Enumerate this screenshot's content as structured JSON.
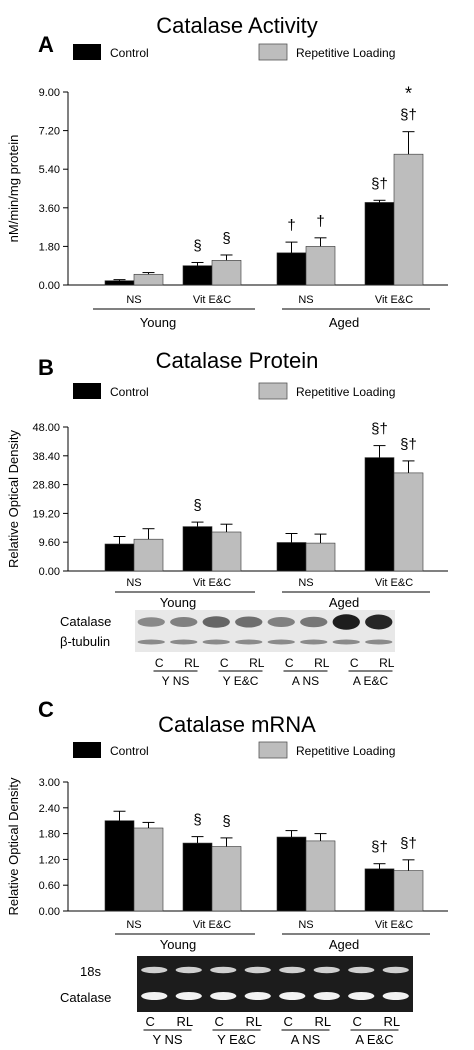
{
  "colors": {
    "control": "#000000",
    "repetitive_loading": "#bdbdbd",
    "axis": "#000000",
    "gel_bg": "#1c1c1c"
  },
  "chart_data": [
    {
      "panel": "A",
      "type": "bar",
      "title": "Catalase Activity",
      "ylabel": "nM/min/mg protein",
      "xlabel": "",
      "ylim": [
        0,
        9
      ],
      "yticks": [
        "0.00",
        "1.80",
        "3.60",
        "5.40",
        "7.20",
        "9.00"
      ],
      "categories": [
        "NS",
        "Vit E&C",
        "NS",
        "Vit E&C"
      ],
      "groups": [
        "Young",
        "Aged"
      ],
      "series": [
        {
          "name": "Control",
          "values": [
            0.2,
            0.9,
            1.5,
            3.85
          ],
          "errors": [
            0.05,
            0.15,
            0.5,
            0.1
          ]
        },
        {
          "name": "Repetitive Loading",
          "values": [
            0.5,
            1.15,
            1.8,
            6.1
          ],
          "errors": [
            0.08,
            0.25,
            0.4,
            1.05
          ]
        }
      ],
      "annotations": [
        {
          "category": 1,
          "series": 0,
          "text": "§"
        },
        {
          "category": 1,
          "series": 1,
          "text": "§"
        },
        {
          "category": 2,
          "series": 0,
          "text": "†"
        },
        {
          "category": 2,
          "series": 1,
          "text": "†"
        },
        {
          "category": 3,
          "series": 0,
          "text": "§†"
        },
        {
          "category": 3,
          "series": 1,
          "text": "§†"
        },
        {
          "category": 3,
          "series": 1,
          "text": "*",
          "line": 2
        }
      ],
      "legend": "top"
    },
    {
      "panel": "B",
      "type": "bar",
      "title": "Catalase Protein",
      "ylabel": "Relative Optical Density",
      "xlabel": "",
      "ylim": [
        0,
        48
      ],
      "yticks": [
        "0.00",
        "9.60",
        "19.20",
        "28.80",
        "38.40",
        "48.00"
      ],
      "categories": [
        "NS",
        "Vit E&C",
        "NS",
        "Vit E&C"
      ],
      "groups": [
        "Young",
        "Aged"
      ],
      "series": [
        {
          "name": "Control",
          "values": [
            9.0,
            14.8,
            9.5,
            37.8
          ],
          "errors": [
            2.5,
            1.5,
            3.0,
            4.0
          ]
        },
        {
          "name": "Repetitive Loading",
          "values": [
            10.6,
            13.0,
            9.3,
            32.7
          ],
          "errors": [
            3.5,
            2.6,
            3.0,
            4.0
          ]
        }
      ],
      "annotations": [
        {
          "category": 1,
          "series": 0,
          "text": "§"
        },
        {
          "category": 3,
          "series": 0,
          "text": "§†"
        },
        {
          "category": 3,
          "series": 1,
          "text": "§†"
        }
      ],
      "legend": "top",
      "blot": {
        "rows": [
          "Catalase",
          "β-tubulin"
        ],
        "lane_labels": [
          "C",
          "RL",
          "C",
          "RL",
          "C",
          "RL",
          "C",
          "RL"
        ],
        "group_labels": [
          "Y NS",
          "Y E&C",
          "A NS",
          "A E&C"
        ]
      }
    },
    {
      "panel": "C",
      "type": "bar",
      "title": "Catalase mRNA",
      "ylabel": "Relative Optical Density",
      "xlabel": "",
      "ylim": [
        0,
        3
      ],
      "yticks": [
        "0.00",
        "0.60",
        "1.20",
        "1.80",
        "2.40",
        "3.00"
      ],
      "categories": [
        "NS",
        "Vit E&C",
        "NS",
        "Vit E&C"
      ],
      "groups": [
        "Young",
        "Aged"
      ],
      "series": [
        {
          "name": "Control",
          "values": [
            2.1,
            1.58,
            1.72,
            0.98
          ],
          "errors": [
            0.22,
            0.15,
            0.15,
            0.12
          ]
        },
        {
          "name": "Repetitive Loading",
          "values": [
            1.93,
            1.5,
            1.63,
            0.94
          ],
          "errors": [
            0.13,
            0.2,
            0.17,
            0.25
          ]
        }
      ],
      "annotations": [
        {
          "category": 1,
          "series": 0,
          "text": "§"
        },
        {
          "category": 1,
          "series": 1,
          "text": "§"
        },
        {
          "category": 3,
          "series": 0,
          "text": "§†"
        },
        {
          "category": 3,
          "series": 1,
          "text": "§†"
        }
      ],
      "legend": "top",
      "gel": {
        "rows": [
          "18s",
          "Catalase"
        ],
        "lane_labels": [
          "C",
          "RL",
          "C",
          "RL",
          "C",
          "RL",
          "C",
          "RL"
        ],
        "group_labels": [
          "Y NS",
          "Y E&C",
          "A NS",
          "A E&C"
        ]
      }
    }
  ]
}
